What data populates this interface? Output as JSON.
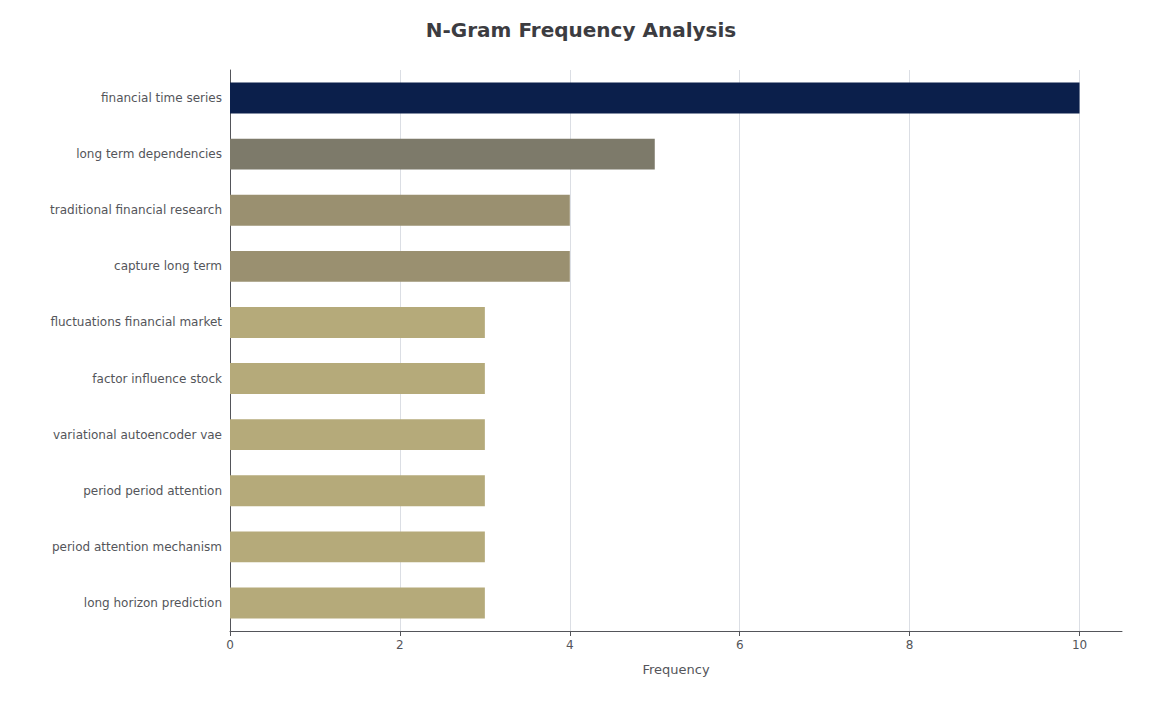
{
  "chart_data": {
    "type": "bar",
    "orientation": "horizontal",
    "title": "N-Gram Frequency Analysis",
    "xlabel": "Frequency",
    "categories": [
      "long horizon prediction",
      "period attention mechanism",
      "period period attention",
      "variational autoencoder vae",
      "factor influence stock",
      "fluctuations financial market",
      "capture long term",
      "traditional financial research",
      "long term dependencies",
      "financial time series"
    ],
    "values": [
      3,
      3,
      3,
      3,
      3,
      3,
      4,
      4,
      5,
      10
    ],
    "colors": [
      "#b5aa7a",
      "#b5aa7a",
      "#b5aa7a",
      "#b5aa7a",
      "#b5aa7a",
      "#b5aa7a",
      "#9a9070",
      "#9a9070",
      "#7d7a6a",
      "#0b1f4b"
    ],
    "xlim": [
      0,
      10.5
    ],
    "xticks": [
      0,
      2,
      4,
      6,
      8,
      10
    ],
    "grid": true
  }
}
